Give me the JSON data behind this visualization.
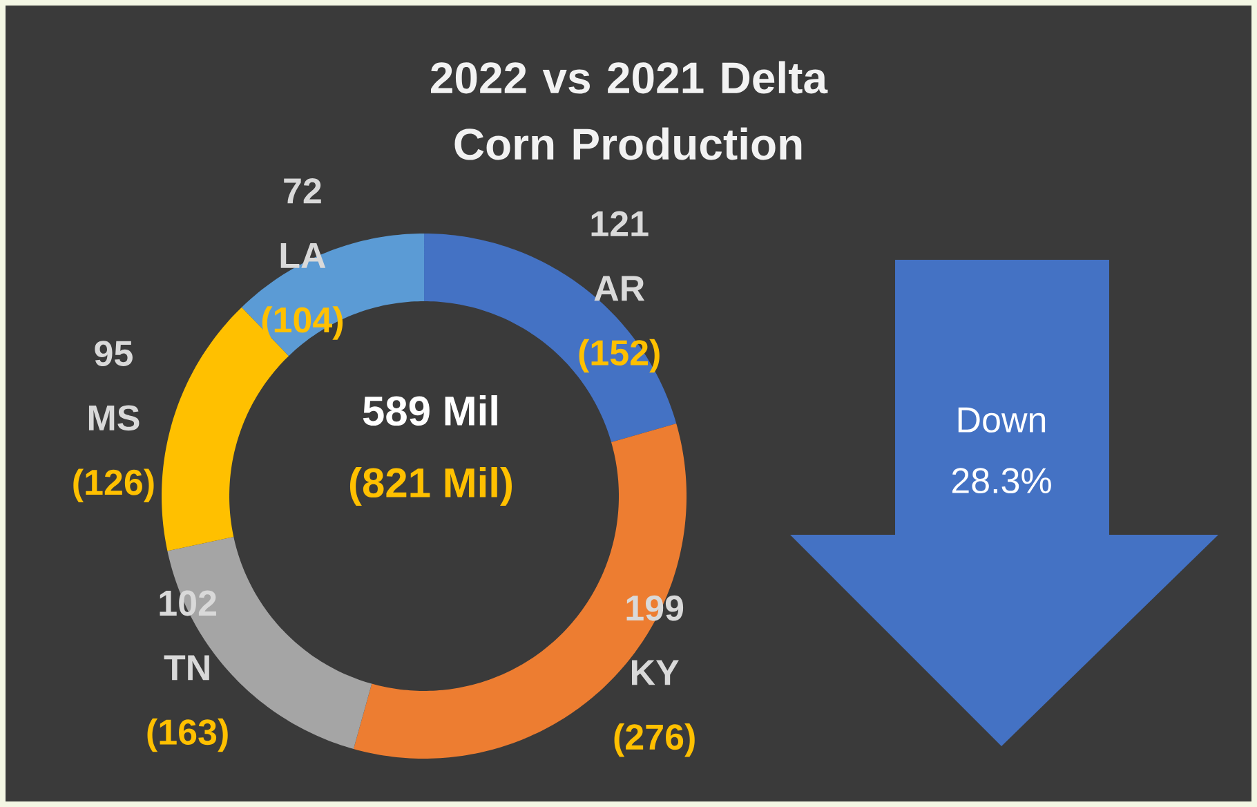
{
  "chart_data": {
    "type": "donut",
    "title": "2022 vs 2021 Delta Corn Production",
    "categories": [
      "AR",
      "KY",
      "TN",
      "MS",
      "LA"
    ],
    "values": [
      121,
      199,
      102,
      95,
      72
    ],
    "colors": [
      "#4472c4",
      "#ed7d31",
      "#a5a5a5",
      "#ffc000",
      "#5b9bd5"
    ],
    "data_labels": true,
    "annotations": [
      {
        "text": "(152)",
        "x": "AR"
      },
      {
        "text": "(276)",
        "x": "KY"
      },
      {
        "text": "(163)",
        "x": "TN"
      },
      {
        "text": "(126)",
        "x": "MS"
      },
      {
        "text": "(104)",
        "x": "LA"
      },
      "589 Mil",
      "(821 Mil)",
      "Down 28.3%"
    ]
  }
}
